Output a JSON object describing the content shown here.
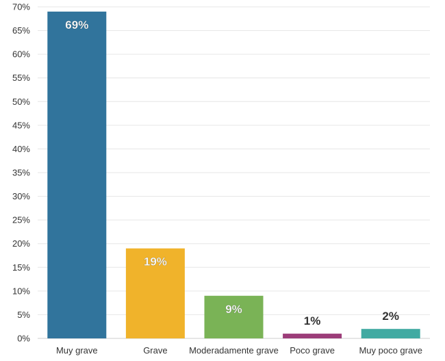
{
  "chart_data": {
    "type": "bar",
    "categories": [
      "Muy grave",
      "Grave",
      "Moderadamente grave",
      "Poco grave",
      "Muy poco grave"
    ],
    "values": [
      69,
      19,
      9,
      1,
      2
    ],
    "data_labels": [
      "69%",
      "19%",
      "9%",
      "1%",
      "2%"
    ],
    "colors": [
      "#31749c",
      "#f0b32b",
      "#7ab356",
      "#9c3d79",
      "#41aaa2"
    ],
    "ylim": [
      0,
      70
    ],
    "yticks": [
      0,
      5,
      10,
      15,
      20,
      25,
      30,
      35,
      40,
      45,
      50,
      55,
      60,
      65,
      70
    ],
    "ytick_labels": [
      "0%",
      "5%",
      "10%",
      "15%",
      "20%",
      "25%",
      "30%",
      "35%",
      "40%",
      "45%",
      "50%",
      "55%",
      "60%",
      "65%",
      "70%"
    ],
    "grid": true,
    "legend": "none",
    "title": "",
    "xlabel": "",
    "ylabel": ""
  }
}
